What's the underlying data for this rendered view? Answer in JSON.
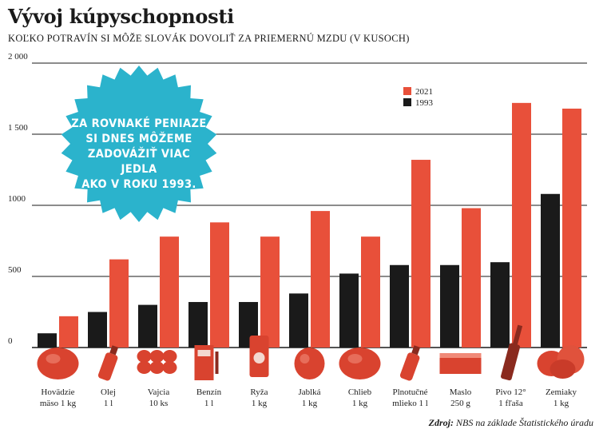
{
  "title": "Vývoj kúpyschopnosti",
  "subtitle": "KOĽKO POTRAVÍN SI MÔŽE SLOVÁK DOVOLIŤ ZA PRIEMERNÚ MZDU (V KUSOCH)",
  "callout": [
    "ZA ROVNAKÉ PENIAZE",
    "SI DNES MÔŽEME",
    "ZADOVÁŽIŤ VIAC JEDLA",
    "AKO V ROKU 1993."
  ],
  "source": {
    "label": "Zdroj:",
    "text": " NBS na základe Štatistického úradu"
  },
  "colors": {
    "s2021": "#e8503a",
    "s1993": "#1a1a1a",
    "callout": "#2bb3cc"
  },
  "chart_data": {
    "type": "bar",
    "categories": [
      [
        "Hovädzie",
        "mäso 1 kg"
      ],
      [
        "Olej",
        "1 l"
      ],
      [
        "Vajcia",
        "10 ks"
      ],
      [
        "Benzín",
        "1 l"
      ],
      [
        "Ryža",
        "1 kg"
      ],
      [
        "Jablká",
        "1 kg"
      ],
      [
        "Chlieb",
        "1 kg"
      ],
      [
        "Plnotučné",
        "mlieko 1 l"
      ],
      [
        "Maslo",
        "250 g"
      ],
      [
        "Pivo 12°",
        "1 fľaša"
      ],
      [
        "Zemiaky",
        "1 kg"
      ]
    ],
    "series": [
      {
        "name": "1993",
        "values": [
          100,
          250,
          300,
          320,
          320,
          380,
          520,
          580,
          580,
          600,
          1080
        ]
      },
      {
        "name": "2021",
        "values": [
          220,
          620,
          780,
          880,
          780,
          960,
          780,
          1320,
          980,
          1720,
          1680
        ]
      }
    ],
    "ylim": [
      0,
      2000
    ],
    "yticks": [
      0,
      500,
      1000,
      1500,
      2000
    ],
    "ytick_labels": [
      "0",
      "500",
      "1000",
      "1 500",
      "2 000"
    ],
    "legend_position": "top-right",
    "grid": true
  }
}
